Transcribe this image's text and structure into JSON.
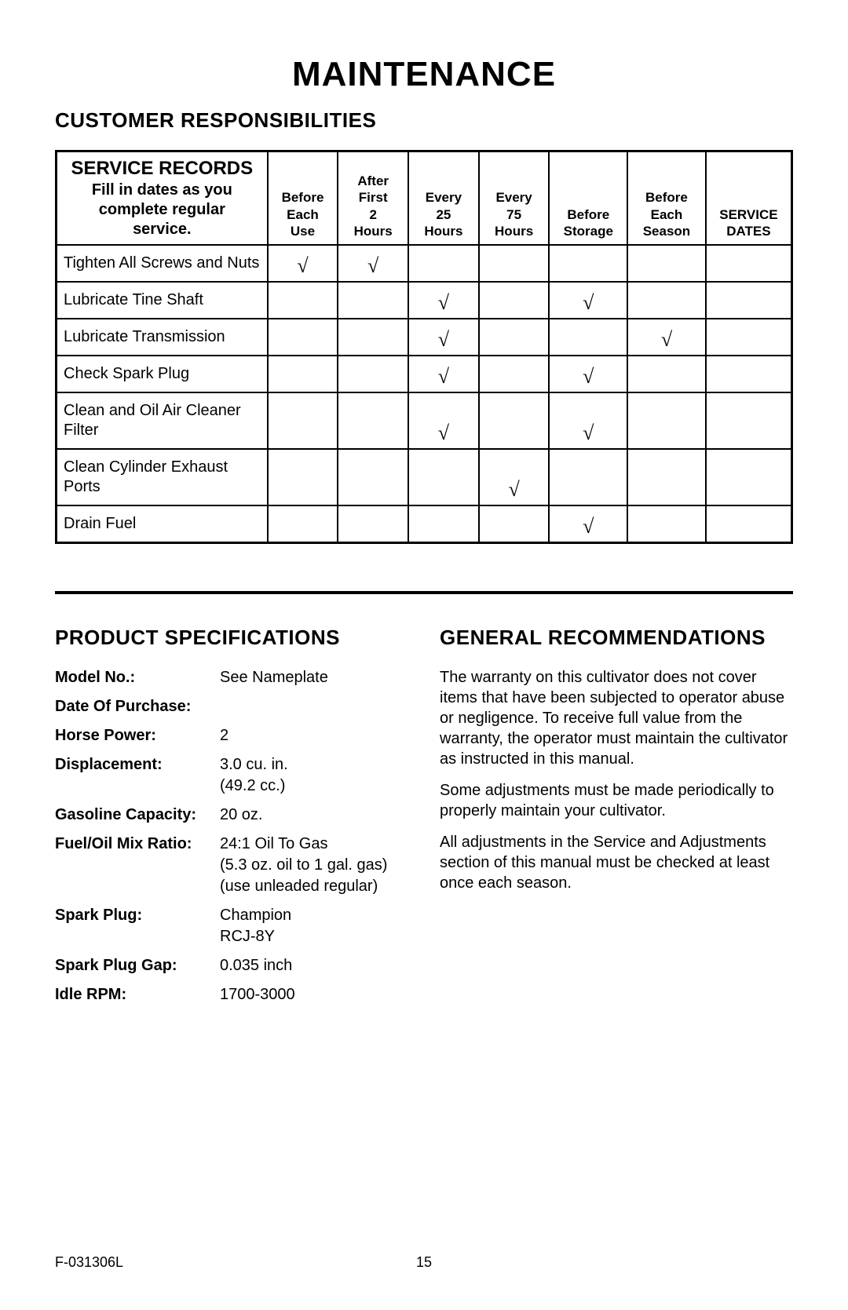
{
  "title": "MAINTENANCE",
  "section_customer": "CUSTOMER RESPONSIBILITIES",
  "service_table": {
    "lead_title": "SERVICE RECORDS",
    "lead_sub1": "Fill in dates as you",
    "lead_sub2": "complete regular",
    "lead_sub3": "service.",
    "columns": [
      [
        "Before",
        "Each",
        "Use"
      ],
      [
        "After",
        "First",
        "2",
        "Hours"
      ],
      [
        "Every",
        "25",
        "Hours"
      ],
      [
        "Every",
        "75",
        "Hours"
      ],
      [
        "Before",
        "Storage"
      ],
      [
        "Before",
        "Each",
        "Season"
      ],
      [
        "SERVICE",
        "DATES"
      ]
    ],
    "rows": [
      {
        "label": "Tighten All Screws and Nuts",
        "marks": [
          "√",
          "√",
          "",
          "",
          "",
          "",
          ""
        ]
      },
      {
        "label": "Lubricate Tine Shaft",
        "marks": [
          "",
          "",
          "√",
          "",
          "√",
          "",
          ""
        ]
      },
      {
        "label": "Lubricate Transmission",
        "marks": [
          "",
          "",
          "√",
          "",
          "",
          "√",
          ""
        ]
      },
      {
        "label": "Check Spark Plug",
        "marks": [
          "",
          "",
          "√",
          "",
          "√",
          "",
          ""
        ]
      },
      {
        "label": "Clean and Oil Air Cleaner Filter",
        "marks": [
          "",
          "",
          "√",
          "",
          "√",
          "",
          ""
        ]
      },
      {
        "label": "Clean Cylinder Exhaust Ports",
        "marks": [
          "",
          "",
          "",
          "√",
          "",
          "",
          ""
        ]
      },
      {
        "label": "Drain Fuel",
        "marks": [
          "",
          "",
          "",
          "",
          "√",
          "",
          ""
        ]
      }
    ]
  },
  "section_specs": "PRODUCT SPECIFICATIONS",
  "specs": [
    {
      "label": "Model No.:",
      "value": "See Nameplate"
    },
    {
      "label": "Date Of Purchase:",
      "value": ""
    },
    {
      "label": "Horse Power:",
      "value": "2"
    },
    {
      "label": "Displacement:",
      "value": "3.0 cu. in.\n(49.2 cc.)"
    },
    {
      "label": "Gasoline Capacity:",
      "value": "20 oz."
    },
    {
      "label": "Fuel/Oil Mix Ratio:",
      "value": "24:1 Oil  To Gas\n(5.3 oz. oil to 1 gal. gas)\n(use unleaded regular)"
    },
    {
      "label": "Spark Plug:",
      "value": "Champion\nRCJ-8Y"
    },
    {
      "label": "Spark Plug Gap:",
      "value": "0.035 inch"
    },
    {
      "label": "Idle RPM:",
      "value": "1700-3000"
    }
  ],
  "section_recs": "GENERAL RECOMMENDATIONS",
  "recs": [
    "The warranty on this cultivator does not cover items that have been subjected to operator abuse or negligence. To receive full value from the warranty, the operator must maintain the cultivator as instructed in this manual.",
    "Some adjustments must be made periodically to properly maintain your cultivator.",
    "All adjustments in the Service and Adjustments section of this manual must be checked at least once each season."
  ],
  "footer": {
    "left": "F-031306L",
    "page": "15"
  }
}
